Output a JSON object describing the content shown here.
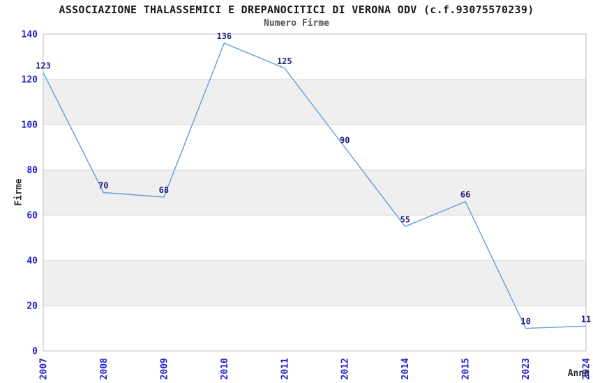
{
  "chart_data": {
    "type": "line",
    "title": "ASSOCIAZIONE THALASSEMICI E DREPANOCITICI DI VERONA ODV (c.f.93075570239)",
    "subtitle": "Numero Firme",
    "xlabel": "Anno",
    "ylabel": "Firme",
    "categories": [
      "2007",
      "2008",
      "2009",
      "2010",
      "2011",
      "2012",
      "2014",
      "2015",
      "2023",
      "2024"
    ],
    "series": [
      {
        "name": "Numero Firme",
        "values": [
          123,
          70,
          68,
          136,
          125,
          90,
          55,
          66,
          10,
          11
        ]
      }
    ],
    "ylim": [
      0,
      140
    ],
    "ytick_step": 20,
    "yticks": [
      0,
      20,
      40,
      60,
      80,
      100,
      120,
      140
    ],
    "grid": "horizontal gridlines with alternating shaded bands",
    "legend_position": "none",
    "x_tick_rotation": 90,
    "colors": {
      "line": "#5f9ee0",
      "tick_label": "#2121d2",
      "value_label": "#1f1f7e",
      "band": "#efefef",
      "gridline": "#d9d9d9",
      "plot_border": "#bdbdbd",
      "title": "#1a1a1a",
      "subtitle": "#545454",
      "axis_label": "#2b2b2b",
      "background": "#ffffff"
    }
  }
}
